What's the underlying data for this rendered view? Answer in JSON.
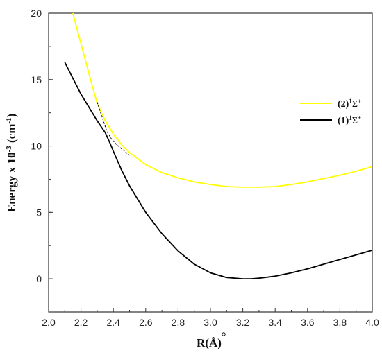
{
  "chart_data": {
    "type": "line",
    "xlabel_main": "R(",
    "xlabel_unit": "Å",
    "xlabel_close": ")",
    "ylabel_main": "Energy x 10",
    "ylabel_exp": "-3",
    "ylabel_unit": " (cm",
    "ylabel_unit_exp": "-1",
    "ylabel_close": ")",
    "xlim": [
      2.0,
      4.0
    ],
    "ylim": [
      -2.5,
      20
    ],
    "xticks": [
      "2.0",
      "2.2",
      "2.4",
      "2.6",
      "2.8",
      "3.0",
      "3.2",
      "3.4",
      "3.6",
      "3.8",
      "4.0"
    ],
    "yticks": [
      "0",
      "5",
      "10",
      "15",
      "20"
    ],
    "legend_position": "right",
    "series": [
      {
        "name_prefix": "(2)",
        "name_sup": "1",
        "name_sym": "Σ",
        "name_sym_sup": "+",
        "color": "#ffff00",
        "x": [
          2.15,
          2.2,
          2.25,
          2.3,
          2.35,
          2.4,
          2.45,
          2.5,
          2.6,
          2.7,
          2.8,
          2.9,
          3.0,
          3.1,
          3.2,
          3.3,
          3.4,
          3.5,
          3.6,
          3.7,
          3.8,
          3.9,
          4.0
        ],
        "y": [
          20.0,
          17.7,
          15.4,
          13.2,
          11.9,
          10.9,
          10.1,
          9.5,
          8.6,
          8.0,
          7.6,
          7.3,
          7.1,
          6.95,
          6.9,
          6.9,
          6.95,
          7.1,
          7.3,
          7.55,
          7.8,
          8.1,
          8.45
        ]
      },
      {
        "name_prefix": "(1)",
        "name_sup": "1",
        "name_sym": "Σ",
        "name_sym_sup": "+",
        "color": "#000000",
        "x": [
          2.1,
          2.15,
          2.2,
          2.25,
          2.3,
          2.35,
          2.38,
          2.4,
          2.45,
          2.5,
          2.6,
          2.7,
          2.8,
          2.9,
          3.0,
          3.1,
          3.2,
          3.25,
          3.3,
          3.4,
          3.5,
          3.6,
          3.7,
          3.8,
          3.9,
          4.0
        ],
        "y": [
          16.3,
          15.1,
          13.9,
          12.9,
          11.9,
          11.0,
          10.2,
          9.6,
          8.2,
          7.0,
          5.0,
          3.4,
          2.1,
          1.1,
          0.45,
          0.1,
          0.0,
          0.0,
          0.05,
          0.2,
          0.45,
          0.75,
          1.1,
          1.45,
          1.8,
          2.15
        ]
      }
    ],
    "dashed_segments": [
      {
        "color": "#000000",
        "x": [
          2.3,
          2.33,
          2.36,
          2.39,
          2.42,
          2.46,
          2.5
        ],
        "y": [
          13.3,
          12.2,
          11.1,
          10.5,
          10.1,
          9.7,
          9.3
        ]
      }
    ]
  }
}
